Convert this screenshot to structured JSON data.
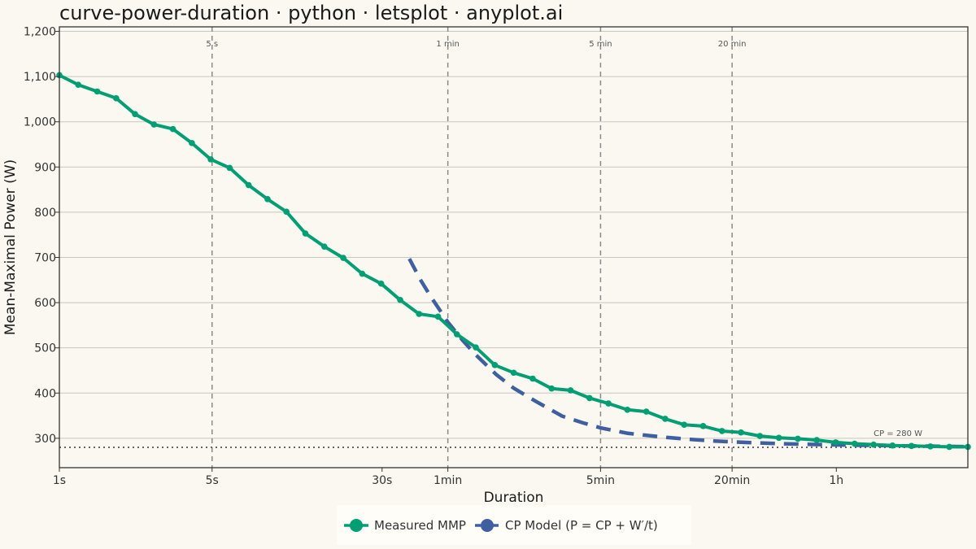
{
  "chart_data": {
    "type": "line",
    "title": "curve-power-duration · python · letsplot · anyplot.ai",
    "xlabel": "Duration",
    "ylabel": "Mean-Maximal Power (W)",
    "x_scale": "log",
    "x_unit": "seconds",
    "xlim": [
      1,
      14400
    ],
    "ylim": [
      235,
      1210
    ],
    "x_ticks": [
      {
        "value": 1,
        "label": "1s"
      },
      {
        "value": 5,
        "label": "5s"
      },
      {
        "value": 30,
        "label": "30s"
      },
      {
        "value": 60,
        "label": "1min"
      },
      {
        "value": 300,
        "label": "5min"
      },
      {
        "value": 1200,
        "label": "20min"
      },
      {
        "value": 3600,
        "label": "1h"
      }
    ],
    "y_ticks": [
      {
        "value": 300,
        "label": "300"
      },
      {
        "value": 400,
        "label": "400"
      },
      {
        "value": 500,
        "label": "500"
      },
      {
        "value": 600,
        "label": "600"
      },
      {
        "value": 700,
        "label": "700"
      },
      {
        "value": 800,
        "label": "800"
      },
      {
        "value": 900,
        "label": "900"
      },
      {
        "value": 1000,
        "label": "1,000"
      },
      {
        "value": 1100,
        "label": "1,100"
      },
      {
        "value": 1200,
        "label": "1,200"
      }
    ],
    "grid": "horizontal",
    "reference_lines": [
      {
        "value": 5,
        "label": "5 s"
      },
      {
        "value": 60,
        "label": "1 min"
      },
      {
        "value": 300,
        "label": "5 min"
      },
      {
        "value": 1200,
        "label": "20 min"
      }
    ],
    "cp_line": {
      "value": 280,
      "label": "CP = 280 W"
    },
    "legend_position": "bottom",
    "series": [
      {
        "name": "Measured MMP",
        "color": "#009E73",
        "style": "solid-with-points",
        "x": [
          1,
          1.22,
          1.49,
          1.82,
          2.22,
          2.71,
          3.31,
          4.04,
          4.93,
          6.02,
          7.35,
          8.97,
          10.95,
          13.37,
          16.32,
          19.93,
          24.33,
          29.7,
          36.3,
          44.3,
          54.1,
          66,
          80.6,
          98.4,
          120.1,
          146.7,
          179.1,
          218.7,
          267.1,
          326,
          398,
          486,
          593,
          724,
          884,
          1079,
          1318,
          1609,
          1965,
          2399,
          2929,
          3576,
          4366,
          5331,
          6509,
          7947,
          9703,
          11847,
          14400
        ],
        "values": [
          1103,
          1082,
          1067,
          1052,
          1017,
          994,
          984,
          953,
          917,
          898,
          860,
          829,
          801,
          753,
          724,
          699,
          664,
          642,
          606,
          575,
          569,
          530,
          501,
          462,
          445,
          432,
          410,
          406,
          389,
          377,
          363,
          359,
          343,
          330,
          327,
          316,
          313,
          305,
          301,
          299,
          296,
          291,
          288,
          286,
          284,
          283,
          282,
          281,
          281
        ]
      },
      {
        "name": "CP Model  (P = CP + W′/t)",
        "color": "#3F5FA0",
        "style": "dashed",
        "x": [
          40,
          45,
          50,
          60,
          70,
          80,
          100,
          120,
          150,
          200,
          250,
          300,
          400,
          600,
          800,
          1000,
          1200,
          1500,
          2000,
          3000,
          4000,
          6000,
          8000,
          10000,
          14400
        ],
        "values": [
          697,
          650,
          614,
          557,
          517,
          486,
          441,
          411,
          383,
          349,
          334,
          323,
          311,
          302,
          297,
          294,
          292,
          290,
          288,
          286,
          285,
          284,
          283,
          282.5,
          281.5
        ]
      }
    ]
  }
}
